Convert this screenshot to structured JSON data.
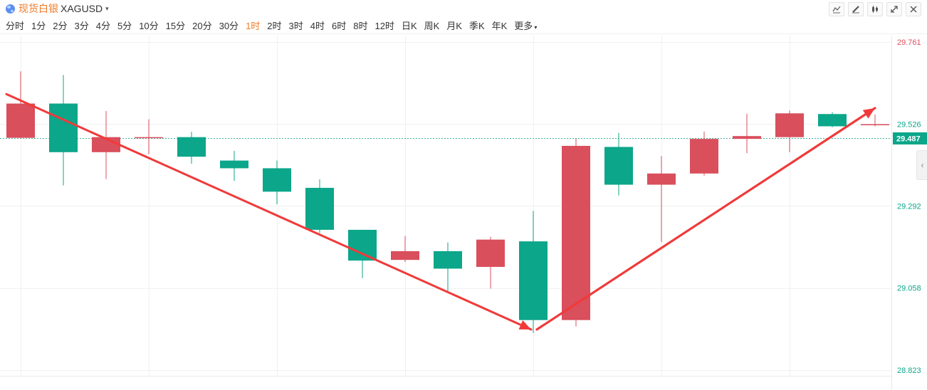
{
  "header": {
    "symbol_name": "现货白银",
    "symbol_code": "XAGUSD",
    "caret": "▾",
    "tools": [
      {
        "name": "line-tool-icon"
      },
      {
        "name": "draw-tool-icon"
      },
      {
        "name": "candle-type-icon"
      },
      {
        "name": "fullscreen-icon"
      },
      {
        "name": "close-icon"
      }
    ]
  },
  "timeframes": [
    "分时",
    "1分",
    "2分",
    "3分",
    "4分",
    "5分",
    "10分",
    "15分",
    "20分",
    "30分",
    "1时",
    "2时",
    "3时",
    "4时",
    "6时",
    "8时",
    "12时",
    "日K",
    "周K",
    "月K",
    "季K",
    "年K"
  ],
  "active_timeframe": "1时",
  "more_label": "更多",
  "colors": {
    "up": "#d94f5c",
    "down": "#0ca68a",
    "arrow": "#f03a3a",
    "accent": "#f07b26"
  },
  "chart_data": {
    "type": "candlestick",
    "y_axis_labels": [
      {
        "value": 29.761,
        "label": "29.761",
        "color": "#d94f5c"
      },
      {
        "value": 29.526,
        "label": "29.526",
        "color": "#0ca68a"
      },
      {
        "value": 29.292,
        "label": "29.292",
        "color": "#0ca68a"
      },
      {
        "value": 29.058,
        "label": "29.058",
        "color": "#0ca68a"
      },
      {
        "value": 28.823,
        "label": "28.823",
        "color": "#0ca68a"
      }
    ],
    "current_price": {
      "value": 29.487,
      "label": "29.487"
    },
    "ylim": [
      28.823,
      29.761
    ],
    "candles": [
      {
        "open": 29.487,
        "close": 29.585,
        "high": 29.677,
        "low": 29.485,
        "dir": "up"
      },
      {
        "open": 29.585,
        "close": 29.446,
        "high": 29.667,
        "low": 29.351,
        "dir": "down"
      },
      {
        "open": 29.446,
        "close": 29.489,
        "high": 29.564,
        "low": 29.369,
        "dir": "up"
      },
      {
        "open": 29.489,
        "close": 29.489,
        "high": 29.54,
        "low": 29.44,
        "dir": "up"
      },
      {
        "open": 29.489,
        "close": 29.433,
        "high": 29.504,
        "low": 29.413,
        "dir": "down"
      },
      {
        "open": 29.422,
        "close": 29.4,
        "high": 29.45,
        "low": 29.364,
        "dir": "down"
      },
      {
        "open": 29.4,
        "close": 29.333,
        "high": 29.422,
        "low": 29.297,
        "dir": "down"
      },
      {
        "open": 29.344,
        "close": 29.224,
        "high": 29.368,
        "low": 29.215,
        "dir": "down"
      },
      {
        "open": 29.224,
        "close": 29.136,
        "high": 29.224,
        "low": 29.086,
        "dir": "down"
      },
      {
        "open": 29.138,
        "close": 29.163,
        "high": 29.206,
        "low": 29.132,
        "dir": "up"
      },
      {
        "open": 29.163,
        "close": 29.113,
        "high": 29.188,
        "low": 29.048,
        "dir": "down"
      },
      {
        "open": 29.118,
        "close": 29.196,
        "high": 29.204,
        "low": 29.056,
        "dir": "up"
      },
      {
        "open": 29.191,
        "close": 28.966,
        "high": 29.278,
        "low": 28.929,
        "dir": "down"
      },
      {
        "open": 28.966,
        "close": 29.464,
        "high": 29.485,
        "low": 28.948,
        "dir": "up"
      },
      {
        "open": 29.461,
        "close": 29.353,
        "high": 29.501,
        "low": 29.322,
        "dir": "down"
      },
      {
        "open": 29.353,
        "close": 29.385,
        "high": 29.435,
        "low": 29.189,
        "dir": "up"
      },
      {
        "open": 29.385,
        "close": 29.484,
        "high": 29.505,
        "low": 29.379,
        "dir": "up"
      },
      {
        "open": 29.484,
        "close": 29.492,
        "high": 29.556,
        "low": 29.443,
        "dir": "up"
      },
      {
        "open": 29.489,
        "close": 29.557,
        "high": 29.565,
        "low": 29.446,
        "dir": "up"
      },
      {
        "open": 29.555,
        "close": 29.52,
        "high": 29.56,
        "low": 29.517,
        "dir": "down"
      },
      {
        "open": 29.526,
        "close": 29.526,
        "high": 29.554,
        "low": 29.52,
        "dir": "up"
      }
    ],
    "annotations": [
      {
        "type": "arrow",
        "from_index": 0,
        "from_value": 29.612,
        "to_index": 12,
        "to_value": 28.939
      },
      {
        "type": "arrow",
        "from_index": 12,
        "from_value": 28.939,
        "to_index": 20,
        "to_value": 29.572
      }
    ]
  }
}
